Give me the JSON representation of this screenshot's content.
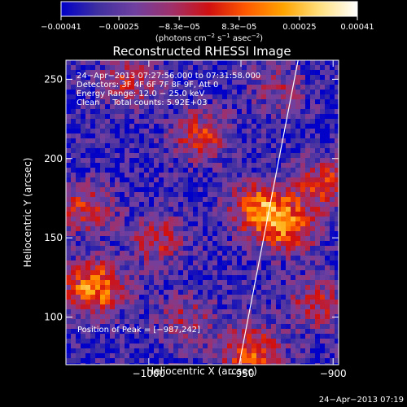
{
  "chart_data": {
    "type": "heatmap",
    "title": "Reconstructed RHESSI Image",
    "xlabel": "Heliocentric X (arcsec)",
    "ylabel": "Heliocentric Y (arcsec)",
    "xlim": [
      -1045,
      -897
    ],
    "ylim": [
      70,
      262
    ],
    "xticks": [
      -1000,
      -950,
      -900
    ],
    "xtick_labels": [
      "−1000",
      "−950",
      "−900"
    ],
    "yticks": [
      100,
      150,
      200,
      250
    ],
    "ytick_labels": [
      "100",
      "150",
      "200",
      "250"
    ],
    "colorbar": {
      "min": -0.00041,
      "max": 0.00041,
      "tick_values": [
        -0.00041,
        -0.00025,
        -8.3e-05,
        8.3e-05,
        0.00025,
        0.00041
      ],
      "tick_labels": [
        "−0.00041",
        "−0.00025",
        "−8.3e−05",
        "8.3e−05",
        "0.00025",
        "0.00041"
      ],
      "units_parts": [
        "(photons cm",
        "−2",
        " s",
        "−1",
        " asec",
        "−2",
        ")"
      ],
      "colors": [
        "#0000c8",
        "#4030a0",
        "#7040a0",
        "#a0306a",
        "#d01010",
        "#ff5a00",
        "#ffa400",
        "#ffe080",
        "#ffffff"
      ]
    },
    "info_lines": [
      "24−Apr−2013 07:27:56.000 to 07:31:58.000",
      "Detectors: 3F 4F 6F 7F 8F 9F, Att 0",
      "Energy Range: 12.0 − 25.0 keV",
      "Clean     Total counts: 5.92E+03"
    ],
    "peak_label": "Position of Peak = [−987,242]",
    "sources": [
      {
        "x": -1030,
        "y": 120,
        "strength": 0.95
      },
      {
        "x": -940,
        "y": 170,
        "strength": 0.85
      },
      {
        "x": -925,
        "y": 158,
        "strength": 0.75
      },
      {
        "x": -905,
        "y": 185,
        "strength": 0.6
      },
      {
        "x": -972,
        "y": 215,
        "strength": 0.6
      },
      {
        "x": -945,
        "y": 80,
        "strength": 0.75
      },
      {
        "x": -1035,
        "y": 170,
        "strength": 0.55
      },
      {
        "x": -995,
        "y": 150,
        "strength": 0.5
      },
      {
        "x": -910,
        "y": 110,
        "strength": 0.5
      },
      {
        "x": -980,
        "y": 100,
        "strength": 0.4
      },
      {
        "x": -1010,
        "y": 250,
        "strength": 0.5
      },
      {
        "x": -930,
        "y": 245,
        "strength": 0.35
      }
    ],
    "limb_line": {
      "x": [
        -951,
        -919
      ],
      "y": [
        70,
        262
      ],
      "color": "#ffffff"
    }
  },
  "footer_timestamp": "24−Apr−2013 07:19"
}
